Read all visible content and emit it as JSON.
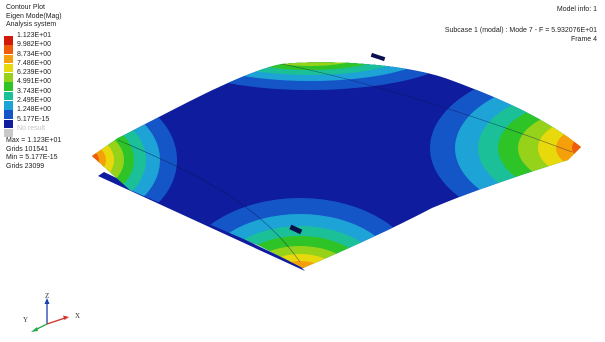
{
  "header": {
    "plot_type": "Contour Plot",
    "result_type": "Eigen Mode(Mag)",
    "system": "Analysis system",
    "model_info": "Model info: 1",
    "subcase": "Subcase 1 (modal) : Mode 7 - F = 5.932076E+01",
    "frame": "Frame 4"
  },
  "legend": {
    "entries": [
      {
        "label": "1.123E+01",
        "color": "#d21a08"
      },
      {
        "label": "9.982E+00",
        "color": "#ef5c0c"
      },
      {
        "label": "8.734E+00",
        "color": "#f5a00a"
      },
      {
        "label": "7.486E+00",
        "color": "#e8d90c"
      },
      {
        "label": "6.239E+00",
        "color": "#96d21a"
      },
      {
        "label": "4.991E+00",
        "color": "#2ec326"
      },
      {
        "label": "3.743E+00",
        "color": "#1bbf98"
      },
      {
        "label": "2.495E+00",
        "color": "#1da3d6"
      },
      {
        "label": "1.248E+00",
        "color": "#1456c7"
      },
      {
        "label": "5.177E-15",
        "color": "#0f1c9e"
      }
    ],
    "no_result": "No result"
  },
  "stats": {
    "max": "Max = 1.123E+01",
    "max_grid": "Grids 101541",
    "min": "Min = 5.177E-15",
    "min_grid": "Grids 23099"
  },
  "triad": {
    "z": "Z",
    "y": "Y",
    "x": "X"
  }
}
